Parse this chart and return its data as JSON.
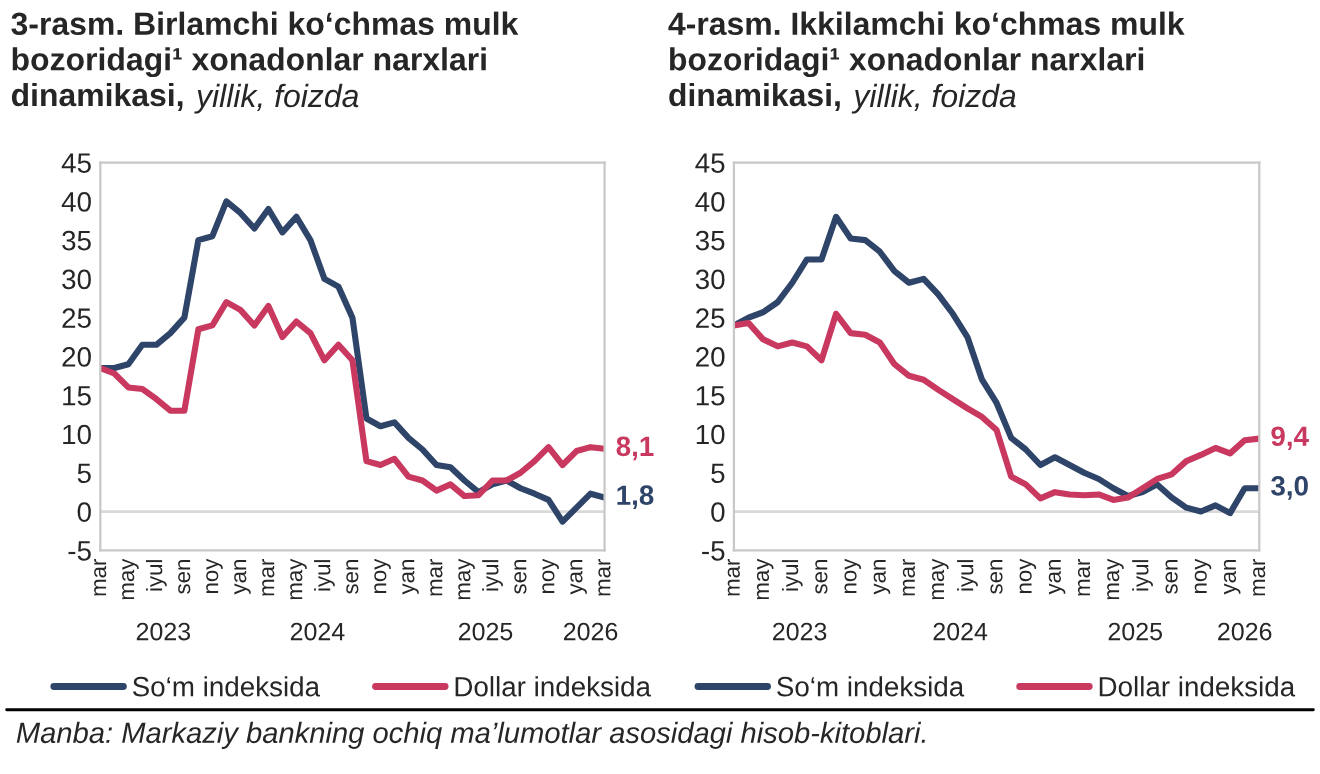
{
  "chart_data": [
    {
      "type": "line",
      "title": "3-rasm. Birlamchi ko‘chmas mulk\nbozoridagi¹ xonadonlar narxlari\ndinamikasi,",
      "subtitle": "yillik, foizda",
      "x": [
        "2023-03",
        "2023-04",
        "2023-05",
        "2023-06",
        "2023-07",
        "2023-08",
        "2023-09",
        "2023-10",
        "2023-11",
        "2023-12",
        "2024-01",
        "2024-02",
        "2024-03",
        "2024-04",
        "2024-05",
        "2024-06",
        "2024-07",
        "2024-08",
        "2024-09",
        "2024-10",
        "2024-11",
        "2024-12",
        "2025-01",
        "2025-02",
        "2025-03",
        "2025-04",
        "2025-05",
        "2025-06",
        "2025-07",
        "2025-08",
        "2025-09",
        "2025-10",
        "2025-11",
        "2025-12",
        "2026-01",
        "2026-02",
        "2026-03"
      ],
      "series": [
        {
          "name": "So‘m indeksida",
          "color": "#2e4468",
          "values": [
            18.5,
            18.5,
            19,
            21.5,
            21.5,
            23,
            25,
            35,
            35.5,
            40,
            38.5,
            36.5,
            39,
            36,
            38,
            35,
            30,
            29,
            25,
            12,
            11,
            11.5,
            9.5,
            8,
            6,
            5.7,
            4,
            2.5,
            3.5,
            4,
            3,
            2.3,
            1.5,
            -1.3,
            0.5,
            2.3,
            1.8
          ],
          "value_labels": [
            null,
            null,
            null,
            null,
            null,
            null,
            null,
            null,
            null,
            null,
            null,
            null,
            null,
            null,
            null,
            null,
            null,
            null,
            null,
            null,
            null,
            null,
            null,
            null,
            null,
            null,
            null,
            null,
            null,
            null,
            null,
            null,
            null,
            null,
            null,
            null,
            "1,8"
          ]
        },
        {
          "name": "Dollar indeksida",
          "color": "#c8385f",
          "values": [
            18.5,
            17.8,
            16,
            15.8,
            14.5,
            13,
            13,
            23.5,
            24,
            27,
            26,
            24,
            26.5,
            22.5,
            24.5,
            23,
            19.5,
            21.5,
            19.5,
            6.5,
            6,
            6.8,
            4.5,
            4,
            2.7,
            3.5,
            2,
            2.1,
            4,
            4,
            5,
            6.5,
            8.3,
            6,
            7.8,
            8.3,
            8.1
          ],
          "value_labels": [
            null,
            null,
            null,
            null,
            null,
            null,
            null,
            null,
            null,
            null,
            null,
            null,
            null,
            null,
            null,
            null,
            null,
            null,
            null,
            null,
            null,
            null,
            null,
            null,
            null,
            null,
            null,
            null,
            null,
            null,
            null,
            null,
            null,
            null,
            null,
            null,
            "8,1"
          ]
        }
      ],
      "xlim": [
        "2023-03",
        "2026-03"
      ],
      "xticks": [
        {
          "value": "2023-03",
          "label": "mar"
        },
        {
          "value": "2023-05",
          "label": "may"
        },
        {
          "value": "2023-07",
          "label": "iyul"
        },
        {
          "value": "2023-09",
          "label": "sen"
        },
        {
          "value": "2023-11",
          "label": "noy"
        },
        {
          "value": "2024-01",
          "label": "yan"
        },
        {
          "value": "2024-03",
          "label": "mar"
        },
        {
          "value": "2024-05",
          "label": "may"
        },
        {
          "value": "2024-07",
          "label": "iyul"
        },
        {
          "value": "2024-09",
          "label": "sen"
        },
        {
          "value": "2024-11",
          "label": "noy"
        },
        {
          "value": "2025-01",
          "label": "yan"
        },
        {
          "value": "2025-03",
          "label": "mar"
        },
        {
          "value": "2025-05",
          "label": "may"
        },
        {
          "value": "2025-07",
          "label": "iyul"
        },
        {
          "value": "2025-09",
          "label": "sen"
        },
        {
          "value": "2025-11",
          "label": "noy"
        },
        {
          "value": "2026-01",
          "label": "yan"
        },
        {
          "value": "2026-03",
          "label": "mar"
        }
      ],
      "ylim": [
        -5,
        45
      ],
      "yticks": [
        -5,
        0,
        5,
        10,
        15,
        20,
        25,
        30,
        35,
        40,
        45
      ],
      "ref_lines": [
        {
          "axis": "y",
          "value": 0,
          "color": "#d9d9d9"
        }
      ],
      "legend": "bottom",
      "annotations": [
        "2023",
        "2024",
        "2025",
        "2026",
        "Manba: Markaziy bankning ochiq ma’lumotlar asosidagi hisob-kitoblari."
      ]
    },
    {
      "type": "line",
      "title": "4-rasm. Ikkilamchi ko‘chmas mulk\nbozoridagi¹ xonadonlar narxlari\ndinamikasi,",
      "subtitle": "yillik, foizda",
      "x": [
        "2023-03",
        "2023-04",
        "2023-05",
        "2023-06",
        "2023-07",
        "2023-08",
        "2023-09",
        "2023-10",
        "2023-11",
        "2023-12",
        "2024-01",
        "2024-02",
        "2024-03",
        "2024-04",
        "2024-05",
        "2024-06",
        "2024-07",
        "2024-08",
        "2024-09",
        "2024-10",
        "2024-11",
        "2024-12",
        "2025-01",
        "2025-02",
        "2025-03",
        "2025-04",
        "2025-05",
        "2025-06",
        "2025-07",
        "2025-08",
        "2025-09",
        "2025-10",
        "2025-11",
        "2025-12",
        "2026-01",
        "2026-02",
        "2026-03"
      ],
      "series": [
        {
          "name": "So‘m indeksida",
          "color": "#2e4468",
          "values": [
            24,
            25,
            25.7,
            27,
            29.5,
            32.5,
            32.5,
            38,
            35.2,
            35,
            33.5,
            31,
            29.5,
            30,
            28,
            25.5,
            22.5,
            17,
            14,
            9.5,
            8,
            6,
            7,
            6,
            5,
            4.2,
            3,
            2,
            2.5,
            3.5,
            1.8,
            0.5,
            0,
            0.8,
            -0.2,
            3,
            3.0
          ],
          "value_labels": [
            null,
            null,
            null,
            null,
            null,
            null,
            null,
            null,
            null,
            null,
            null,
            null,
            null,
            null,
            null,
            null,
            null,
            null,
            null,
            null,
            null,
            null,
            null,
            null,
            null,
            null,
            null,
            null,
            null,
            null,
            null,
            null,
            null,
            null,
            null,
            null,
            "3,0"
          ]
        },
        {
          "name": "Dollar indeksida",
          "color": "#c8385f",
          "values": [
            24,
            24.3,
            22.2,
            21.3,
            21.8,
            21.3,
            19.5,
            25.5,
            23,
            22.8,
            21.8,
            19,
            17.5,
            17,
            15.7,
            14.5,
            13.3,
            12.2,
            10.5,
            4.5,
            3.5,
            1.7,
            2.5,
            2.2,
            2.1,
            2.2,
            1.5,
            1.8,
            3,
            4.2,
            4.8,
            6.5,
            7.3,
            8.2,
            7.5,
            9.2,
            9.4
          ],
          "value_labels": [
            null,
            null,
            null,
            null,
            null,
            null,
            null,
            null,
            null,
            null,
            null,
            null,
            null,
            null,
            null,
            null,
            null,
            null,
            null,
            null,
            null,
            null,
            null,
            null,
            null,
            null,
            null,
            null,
            null,
            null,
            null,
            null,
            null,
            null,
            null,
            null,
            "9,4"
          ]
        }
      ],
      "xlim": [
        "2023-03",
        "2026-03"
      ],
      "xticks": [
        {
          "value": "2023-03",
          "label": "mar"
        },
        {
          "value": "2023-05",
          "label": "may"
        },
        {
          "value": "2023-07",
          "label": "iyul"
        },
        {
          "value": "2023-09",
          "label": "sen"
        },
        {
          "value": "2023-11",
          "label": "noy"
        },
        {
          "value": "2024-01",
          "label": "yan"
        },
        {
          "value": "2024-03",
          "label": "mar"
        },
        {
          "value": "2024-05",
          "label": "may"
        },
        {
          "value": "2024-07",
          "label": "iyul"
        },
        {
          "value": "2024-09",
          "label": "sen"
        },
        {
          "value": "2024-11",
          "label": "noy"
        },
        {
          "value": "2025-01",
          "label": "yan"
        },
        {
          "value": "2025-03",
          "label": "mar"
        },
        {
          "value": "2025-05",
          "label": "may"
        },
        {
          "value": "2025-07",
          "label": "iyul"
        },
        {
          "value": "2025-09",
          "label": "sen"
        },
        {
          "value": "2025-11",
          "label": "noy"
        },
        {
          "value": "2026-01",
          "label": "yan"
        },
        {
          "value": "2026-03",
          "label": "mar"
        }
      ],
      "ylim": [
        -5,
        45
      ],
      "yticks": [
        -5,
        0,
        5,
        10,
        15,
        20,
        25,
        30,
        35,
        40,
        45
      ],
      "ref_lines": [
        {
          "axis": "y",
          "value": 0,
          "color": "#d9d9d9"
        }
      ],
      "legend": "bottom",
      "annotations": [
        "2023",
        "2024",
        "2025",
        "2026"
      ]
    }
  ]
}
